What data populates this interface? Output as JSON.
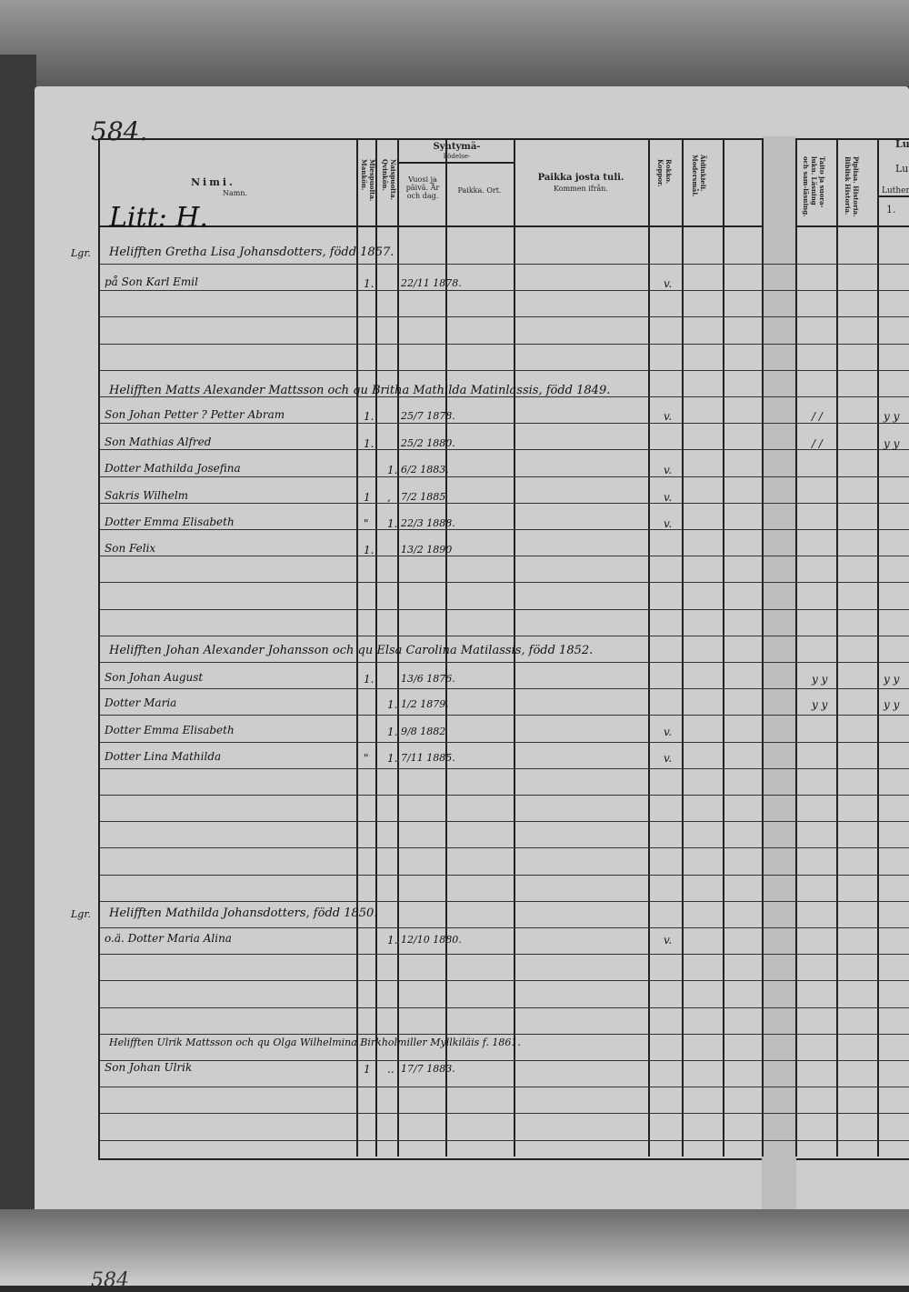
{
  "page_number": "584.",
  "bottom_page_number": "584",
  "section_label": "Litt: H.",
  "header": {
    "name_fi": "Nimi.",
    "name_sv": "Namn.",
    "male": "Miespuolta. Mankön.",
    "female": "Naispuolta. Qvinkön.",
    "birth_fi": "Syntymä-",
    "birth_sv": "Födelse-",
    "date": "Vuosi ja päivä. År och dag.",
    "place": "Paikka. Ort.",
    "from_fi": "Paikka josta tuli.",
    "from_sv": "Kommen ifrån.",
    "smallpox": "Rokko. Koppor.",
    "language": "Äidinkieli. Modersmål.",
    "reading": "Taito ja suora-luku. Läsning och sam-läsning.",
    "bible": "Pipliaa. Historia. Biblisk Historia.",
    "luther_top": "Lu",
    "luther_mid": "Lut",
    "luther": "Luther",
    "luther_col1": "1."
  },
  "entries": [
    {
      "margin": "Lgr.",
      "text": "Helifften Gretha Lisa Johansdotters, född 1857."
    },
    {
      "margin": "",
      "text": "på Son Karl Emil",
      "male": "1.",
      "date": "22/11 1878.",
      "pox": "v."
    },
    {
      "margin": "",
      "text": "Helifften Matts Alexander Mattsson och qu Britha Mathilda Matinlassis, född 1849."
    },
    {
      "margin": "",
      "text": "Son Johan Petter ? Petter Abram",
      "male": "1.",
      "date": "25/7 1878.",
      "pox": "v.",
      "r1": "/ /",
      "r2": "y y"
    },
    {
      "margin": "",
      "text": "Son Mathias Alfred",
      "male": "1.",
      "date": "25/2 1880.",
      "r1": "/ /",
      "r2": "y y"
    },
    {
      "margin": "",
      "text": "Dotter Mathilda Josefina",
      "female": "1.",
      "date": "6/2 1883.",
      "pox": "v."
    },
    {
      "margin": "",
      "text": "Sakris Wilhelm",
      "male": "1",
      "female": ",",
      "date": "7/2 1885",
      "pox": "v."
    },
    {
      "margin": "",
      "text": "Dotter Emma Elisabeth",
      "male": "\"",
      "female": "1.",
      "date": "22/3 1888.",
      "pox": "v."
    },
    {
      "margin": "",
      "text": "Son Felix",
      "male": "1.",
      "date": "13/2 1890"
    },
    {
      "margin": "",
      "text": "Helifften Johan Alexander Johansson och qu Elsa Carolina Matilassis, född 1852."
    },
    {
      "margin": "",
      "text": "Son Johan August",
      "male": "1.",
      "date": "13/6 1876.",
      "r1": "y y",
      "r2": "y y"
    },
    {
      "margin": "",
      "text": "Dotter Maria",
      "female": "1.",
      "date": "1/2 1879.",
      "r1": "y y",
      "r2": "y y"
    },
    {
      "margin": "",
      "text": "Dotter Emma Elisabeth",
      "female": "1.",
      "date": "9/8 1882",
      "pox": "v."
    },
    {
      "margin": "",
      "text": "Dotter Lina Mathilda",
      "male": "\"",
      "female": "1.",
      "date": "7/11 1885.",
      "pox": "v."
    },
    {
      "margin": "Lgr.",
      "text": "Helifften Mathilda Johansdotters, född 1850."
    },
    {
      "margin": "",
      "text": "o.ä. Dotter Maria Alina",
      "female": "1.",
      "date": "12/10 1880.",
      "pox": "v."
    },
    {
      "margin": "",
      "text": "Helifften Ulrik Mattsson och qu Olga Wilhelmina Birkholmiller Myllkiläis f. 1861."
    },
    {
      "margin": "",
      "text": "Son Johan Ulrik",
      "male": "1",
      "female": "..",
      "date": "17/7 1883."
    }
  ]
}
